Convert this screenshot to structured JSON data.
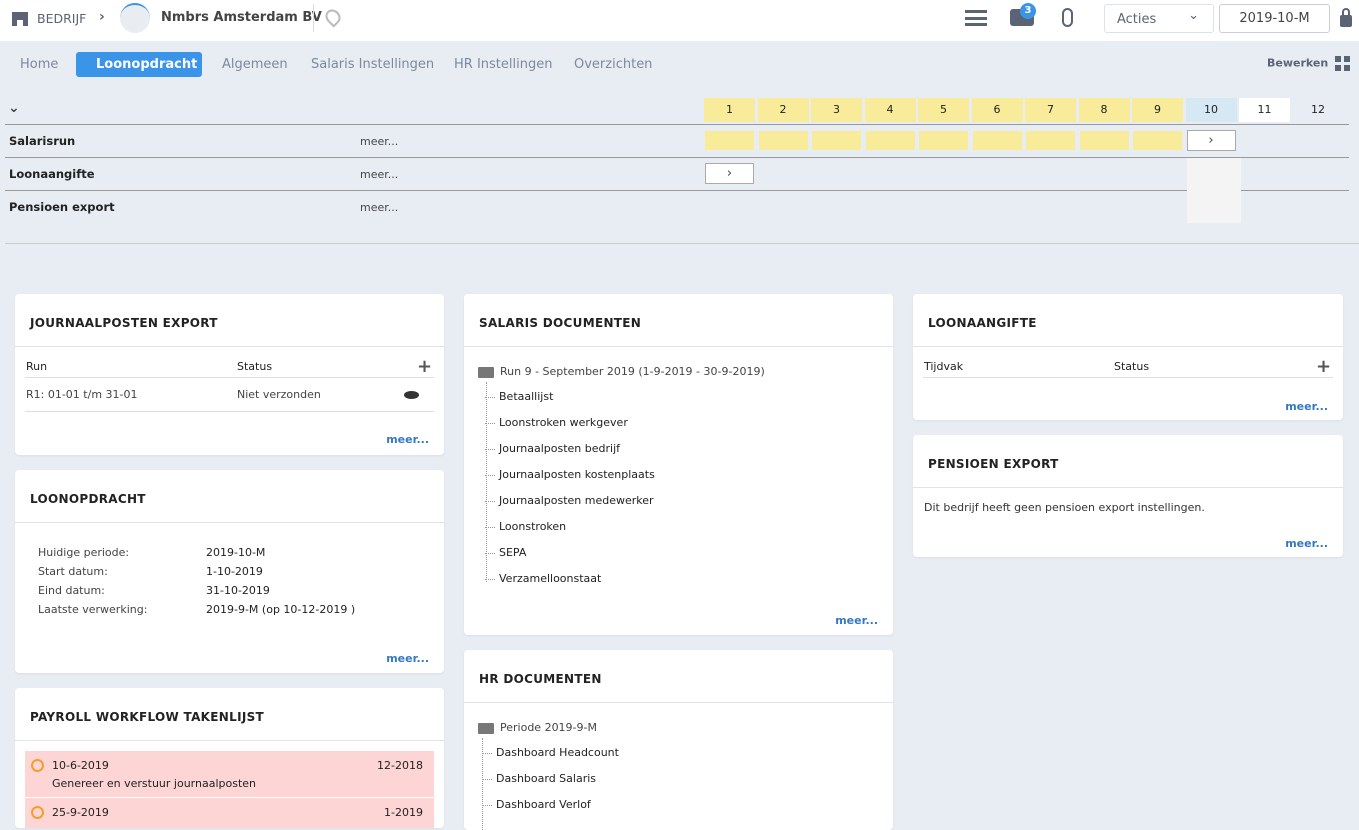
{
  "header": {
    "company_label": "BEDRIJF",
    "company_name": "Nmbrs Amsterdam BV",
    "notifications": "3",
    "actions_label": "Acties",
    "period": "2019-10-M",
    "icons": [
      "store-icon",
      "chevron-right-icon",
      "location-home-icon",
      "list-icon",
      "chat-icon",
      "paperclip-icon",
      "chevron-down-icon",
      "lock-icon"
    ]
  },
  "tabs": [
    {
      "label": "Home"
    },
    {
      "label": "Loonopdracht",
      "active": true
    },
    {
      "label": "Algemeen"
    },
    {
      "label": "Salaris Instellingen"
    },
    {
      "label": "HR Instellingen"
    },
    {
      "label": "Overzichten"
    }
  ],
  "edit_label": "Bewerken",
  "periods": [
    "1",
    "2",
    "3",
    "4",
    "5",
    "6",
    "7",
    "8",
    "9",
    "10",
    "11",
    "12"
  ],
  "colors": {
    "done": "#f8ec9a",
    "current": "#d6e8f4",
    "accent": "#3a95e8",
    "overdue": "#fdd5d5"
  },
  "process_rows": [
    {
      "label": "Salarisrun",
      "more": "meer...",
      "completed_periods": 9,
      "action_period": 10
    },
    {
      "label": "Loonaangifte",
      "more": "meer...",
      "action_period": 1
    },
    {
      "label": "Pensioen export",
      "more": "meer..."
    }
  ],
  "journaal": {
    "title": "JOURNAALPOSTEN EXPORT",
    "col_run": "Run",
    "col_status": "Status",
    "rows": [
      {
        "run": "R1: 01-01 t/m 31-01",
        "status": "Niet verzonden"
      }
    ],
    "more": "meer..."
  },
  "loonopdracht": {
    "title": "LOONOPDRACHT",
    "fields": [
      {
        "label": "Huidige periode:",
        "value": "2019-10-M"
      },
      {
        "label": "Start datum:",
        "value": "1-10-2019"
      },
      {
        "label": "Eind datum:",
        "value": "31-10-2019"
      },
      {
        "label": "Laatste verwerking:",
        "value": "2019-9-M (op 10-12-2019 )"
      }
    ],
    "more": "meer..."
  },
  "workflow": {
    "title": "PAYROLL WORKFLOW TAKENLIJST",
    "tasks": [
      {
        "date": "10-6-2019",
        "period": "12-2018",
        "desc": "Genereer en verstuur journaalposten"
      },
      {
        "date": "25-9-2019",
        "period": "1-2019"
      }
    ]
  },
  "salaris_docs": {
    "title": "SALARIS DOCUMENTEN",
    "folder": "Run 9 - September 2019 (1-9-2019 - 30-9-2019)",
    "items": [
      "Betaallijst",
      "Loonstroken werkgever",
      "Journaalposten bedrijf",
      "Journaalposten kostenplaats",
      "Journaalposten medewerker",
      "Loonstroken",
      "SEPA",
      "Verzamelloonstaat"
    ],
    "more": "meer..."
  },
  "hr_docs": {
    "title": "HR DOCUMENTEN",
    "folder": "Periode 2019-9-M",
    "items": [
      "Dashboard Headcount",
      "Dashboard Salaris",
      "Dashboard Verlof"
    ]
  },
  "loonaangifte": {
    "title": "LOONAANGIFTE",
    "col_tijdvak": "Tijdvak",
    "col_status": "Status",
    "more": "meer..."
  },
  "pensioen": {
    "title": "PENSIOEN EXPORT",
    "text": "Dit bedrijf heeft geen pensioen export instellingen.",
    "more": "meer..."
  }
}
